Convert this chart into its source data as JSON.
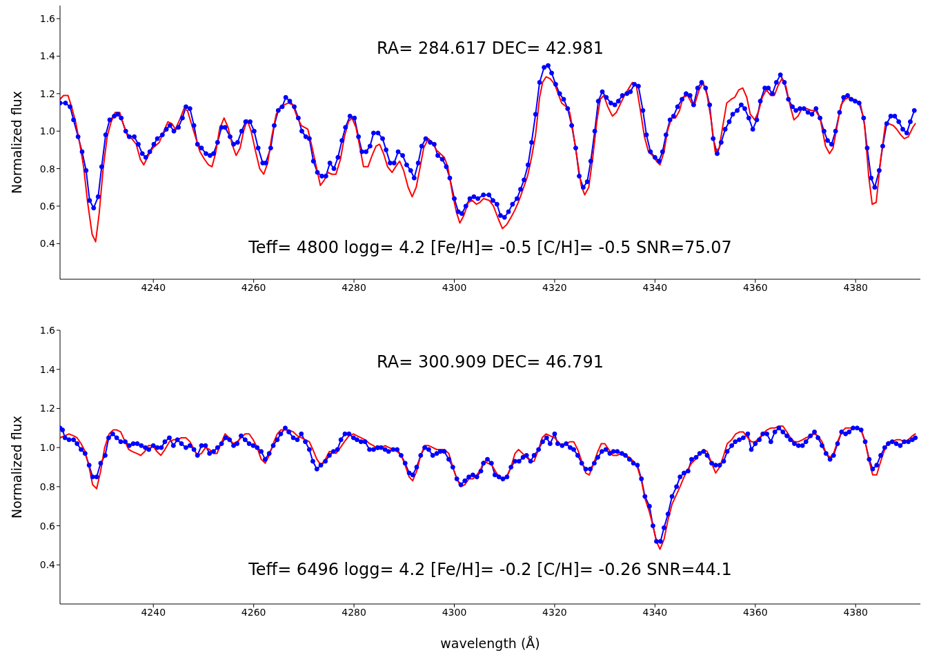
{
  "chart_data": [
    {
      "type": "line",
      "ylabel": "Normalized flux",
      "xlim": [
        4221.4,
        4392.9
      ],
      "xticks": [
        4240,
        4260,
        4280,
        4300,
        4320,
        4340,
        4360,
        4380
      ],
      "ylim": [
        0.21,
        1.67
      ],
      "yticks": [
        0.4,
        0.6,
        0.8,
        {
          "value": 1,
          "label": "1.0"
        },
        1.2,
        1.4,
        1.6
      ],
      "annotations": [
        "RA= 284.617 DEC= 42.981",
        "Teff= 4800 logg= 4.2 [Fe/H]= -0.5 [C/H]= -0.5 SNR=75.07"
      ],
      "series": [
        {
          "color": "#0000ff",
          "marker": "circle",
          "x": [
            4221.4,
            4222.5,
            4223.4,
            4224.1,
            4225.0,
            4225.8,
            4226.6,
            4227.3,
            4228.1,
            4229.0,
            4229.7,
            4230.5,
            4231.3,
            4232.2,
            4232.9,
            4233.6,
            4234.5,
            4235.2,
            4236.2,
            4237.0,
            4237.8,
            4238.5,
            4239.3,
            4240.1,
            4240.8,
            4241.8,
            4242.6,
            4243.3,
            4244.1,
            4245.0,
            4245.8,
            4246.5,
            4247.3,
            4248.1,
            4248.8,
            4249.6,
            4250.5,
            4251.3,
            4252.0,
            4252.8,
            4253.6,
            4254.3,
            4255.3,
            4256.0,
            4256.8,
            4257.6,
            4258.4,
            4259.3,
            4260.1,
            4260.9,
            4261.8,
            4262.4,
            4263.4,
            4264.1,
            4264.9,
            4265.7,
            4266.4,
            4267.2,
            4268.1,
            4268.9,
            4269.6,
            4270.4,
            4271.1,
            4271.9,
            4272.7,
            4273.6,
            4274.4,
            4275.2,
            4276.0,
            4276.8,
            4277.6,
            4278.3,
            4279.2,
            4280.1,
            4280.9,
            4281.6,
            4282.4,
            4283.2,
            4283.9,
            4284.8,
            4285.7,
            4286.4,
            4287.2,
            4288.0,
            4288.8,
            4289.7,
            4290.5,
            4291.3,
            4292.0,
            4292.8,
            4293.5,
            4294.3,
            4295.2,
            4296.0,
            4296.7,
            4297.6,
            4298.4,
            4299.1,
            4300.0,
            4300.8,
            4301.5,
            4302.3,
            4303.1,
            4303.9,
            4304.7,
            4305.8,
            4306.9,
            4307.7,
            4308.5,
            4309.2,
            4310.0,
            4310.8,
            4311.6,
            4312.5,
            4313.2,
            4313.9,
            4314.7,
            4315.4,
            4316.2,
            4317.0,
            4317.9,
            4318.7,
            4319.4,
            4320.2,
            4321.0,
            4321.8,
            4322.6,
            4323.4,
            4324.2,
            4324.9,
            4325.7,
            4326.5,
            4327.2,
            4328.0,
            4328.7,
            4329.5,
            4330.3,
            4331.2,
            4332.0,
            4332.7,
            4333.5,
            4334.4,
            4335.1,
            4335.9,
            4336.7,
            4337.6,
            4338.3,
            4339.1,
            4340.0,
            4340.8,
            4341.5,
            4342.2,
            4343.0,
            4343.7,
            4344.5,
            4345.4,
            4346.2,
            4347.0,
            4347.7,
            4348.5,
            4349.3,
            4350.1,
            4350.9,
            4351.6,
            4352.4,
            4353.2,
            4354.0,
            4354.8,
            4355.5,
            4356.4,
            4357.2,
            4357.9,
            4358.7,
            4359.5,
            4360.3,
            4361.0,
            4361.9,
            4362.6,
            4363.4,
            4364.2,
            4365.0,
            4365.8,
            4366.6,
            4367.4,
            4368.1,
            4368.9,
            4369.7,
            4370.5,
            4371.3,
            4372.1,
            4372.9,
            4373.7,
            4374.4,
            4375.2,
            4376.0,
            4376.8,
            4377.6,
            4378.4,
            4379.1,
            4379.9,
            4380.7,
            4381.6,
            4382.3,
            4383.1,
            4383.8,
            4384.7,
            4385.4,
            4386.2,
            4387.0,
            4387.8,
            4388.6,
            4389.4,
            4390.2,
            4390.9,
            4391.7
          ],
          "values": [
            1.15,
            1.15,
            1.13,
            1.06,
            0.97,
            0.89,
            0.79,
            0.63,
            0.59,
            0.65,
            0.81,
            0.98,
            1.06,
            1.08,
            1.09,
            1.07,
            1.0,
            0.97,
            0.97,
            0.93,
            0.88,
            0.86,
            0.89,
            0.93,
            0.96,
            0.98,
            1.01,
            1.03,
            1.0,
            1.02,
            1.07,
            1.13,
            1.12,
            1.03,
            0.93,
            0.91,
            0.88,
            0.87,
            0.88,
            0.94,
            1.02,
            1.02,
            0.97,
            0.93,
            0.94,
            1.0,
            1.05,
            1.05,
            1.0,
            0.91,
            0.83,
            0.83,
            0.91,
            1.03,
            1.11,
            1.13,
            1.18,
            1.16,
            1.13,
            1.07,
            1.0,
            0.97,
            0.96,
            0.84,
            0.78,
            0.76,
            0.76,
            0.83,
            0.8,
            0.86,
            0.95,
            1.02,
            1.08,
            1.07,
            0.97,
            0.89,
            0.89,
            0.92,
            0.99,
            0.99,
            0.96,
            0.9,
            0.83,
            0.83,
            0.89,
            0.87,
            0.82,
            0.79,
            0.75,
            0.83,
            0.92,
            0.96,
            0.94,
            0.93,
            0.87,
            0.85,
            0.81,
            0.75,
            0.64,
            0.57,
            0.56,
            0.6,
            0.64,
            0.65,
            0.64,
            0.66,
            0.66,
            0.63,
            0.61,
            0.55,
            0.54,
            0.57,
            0.61,
            0.64,
            0.69,
            0.74,
            0.82,
            0.94,
            1.09,
            1.26,
            1.34,
            1.35,
            1.31,
            1.25,
            1.2,
            1.17,
            1.12,
            1.03,
            0.91,
            0.76,
            0.7,
            0.73,
            0.84,
            1.0,
            1.16,
            1.21,
            1.18,
            1.15,
            1.14,
            1.16,
            1.19,
            1.2,
            1.21,
            1.25,
            1.24,
            1.11,
            0.98,
            0.89,
            0.86,
            0.84,
            0.89,
            0.98,
            1.06,
            1.08,
            1.13,
            1.17,
            1.2,
            1.19,
            1.14,
            1.23,
            1.26,
            1.23,
            1.14,
            0.96,
            0.88,
            0.94,
            1.01,
            1.05,
            1.09,
            1.11,
            1.14,
            1.12,
            1.07,
            1.01,
            1.06,
            1.16,
            1.23,
            1.23,
            1.2,
            1.26,
            1.3,
            1.26,
            1.17,
            1.13,
            1.11,
            1.12,
            1.12,
            1.1,
            1.09,
            1.12,
            1.07,
            1.0,
            0.95,
            0.93,
            1.0,
            1.1,
            1.18,
            1.19,
            1.17,
            1.16,
            1.15,
            1.07,
            0.91,
            0.75,
            0.7,
            0.79,
            0.92,
            1.04,
            1.08,
            1.08,
            1.05,
            1.01,
            0.99,
            1.05,
            1.11
          ]
        },
        {
          "color": "#ff0000",
          "x": [
            4221.4,
            4222.1,
            4223.0,
            4223.7,
            4224.5,
            4225.3,
            4226.1,
            4226.9,
            4227.8,
            4228.5,
            4229.2,
            4230.0,
            4230.8,
            4231.6,
            4232.4,
            4233.3,
            4234.1,
            4234.9,
            4235.7,
            4236.6,
            4237.4,
            4238.1,
            4239.0,
            4239.9,
            4241.2,
            4242.1,
            4242.9,
            4243.7,
            4244.4,
            4245.4,
            4246.1,
            4246.8,
            4247.7,
            4248.5,
            4249.3,
            4250.2,
            4251.0,
            4251.7,
            4252.4,
            4253.2,
            4254.1,
            4254.9,
            4255.7,
            4256.5,
            4257.3,
            4258.0,
            4258.7,
            4259.5,
            4260.4,
            4261.2,
            4262.0,
            4262.8,
            4263.6,
            4264.5,
            4265.3,
            4266.1,
            4266.9,
            4267.8,
            4268.6,
            4269.5,
            4270.8,
            4271.6,
            4272.5,
            4273.3,
            4274.1,
            4274.8,
            4275.6,
            4276.4,
            4277.3,
            4278.1,
            4278.9,
            4279.6,
            4280.4,
            4281.2,
            4281.9,
            4282.8,
            4283.6,
            4284.4,
            4285.1,
            4285.9,
            4286.7,
            4287.6,
            4288.3,
            4289.1,
            4289.9,
            4290.8,
            4291.6,
            4292.4,
            4293.2,
            4293.9,
            4294.8,
            4295.6,
            4296.4,
            4297.2,
            4298.0,
            4298.7,
            4299.6,
            4300.4,
            4301.1,
            4301.9,
            4302.8,
            4303.6,
            4304.4,
            4305.1,
            4305.8,
            4307.0,
            4307.8,
            4308.8,
            4309.6,
            4310.4,
            4311.3,
            4312.1,
            4312.9,
            4313.7,
            4314.6,
            4315.4,
            4316.2,
            4317.0,
            4317.6,
            4318.3,
            4319.1,
            4320.0,
            4320.7,
            4321.4,
            4322.3,
            4323.0,
            4323.6,
            4324.5,
            4325.3,
            4326.0,
            4326.8,
            4327.6,
            4328.4,
            4329.1,
            4329.8,
            4330.6,
            4331.5,
            4332.3,
            4333.2,
            4333.9,
            4334.6,
            4335.5,
            4336.3,
            4337.1,
            4337.9,
            4338.7,
            4339.5,
            4340.3,
            4341.0,
            4341.8,
            4342.5,
            4343.3,
            4344.1,
            4344.9,
            4345.6,
            4346.5,
            4347.3,
            4348.0,
            4348.8,
            4349.6,
            4350.4,
            4351.2,
            4352.0,
            4352.8,
            4353.6,
            4354.3,
            4355.2,
            4355.9,
            4356.7,
            4357.5,
            4358.3,
            4359.0,
            4359.9,
            4360.7,
            4361.4,
            4362.2,
            4363.1,
            4363.8,
            4364.5,
            4365.3,
            4366.1,
            4366.9,
            4367.7,
            4368.5,
            4369.3,
            4370.2,
            4371.2,
            4372.0,
            4372.9,
            4374.0,
            4374.8,
            4375.5,
            4376.4,
            4377.1,
            4377.9,
            4378.7,
            4379.5,
            4380.3,
            4381.0,
            4381.8,
            4382.6,
            4383.3,
            4384.1,
            4385.0,
            4385.9,
            4386.6,
            4387.5,
            4388.2,
            4389.0,
            4389.7,
            4390.5,
            4391.4,
            4391.9
          ],
          "values": [
            1.17,
            1.19,
            1.19,
            1.13,
            1.05,
            0.94,
            0.81,
            0.62,
            0.45,
            0.41,
            0.56,
            0.8,
            0.97,
            1.05,
            1.1,
            1.1,
            1.03,
            0.97,
            0.96,
            0.93,
            0.85,
            0.82,
            0.87,
            0.91,
            0.94,
            1.0,
            1.05,
            1.04,
            1.01,
            1.07,
            1.12,
            1.11,
            1.03,
            0.96,
            0.89,
            0.85,
            0.82,
            0.81,
            0.88,
            1.01,
            1.07,
            1.02,
            0.93,
            0.87,
            0.91,
            1.0,
            1.06,
            1.0,
            0.89,
            0.8,
            0.77,
            0.83,
            0.97,
            1.09,
            1.13,
            1.14,
            1.15,
            1.14,
            1.08,
            1.03,
            1.01,
            0.92,
            0.81,
            0.71,
            0.74,
            0.78,
            0.77,
            0.77,
            0.85,
            0.97,
            1.05,
            1.07,
            1.02,
            0.91,
            0.81,
            0.81,
            0.87,
            0.92,
            0.93,
            0.88,
            0.81,
            0.78,
            0.81,
            0.84,
            0.79,
            0.7,
            0.65,
            0.7,
            0.81,
            0.91,
            0.96,
            0.94,
            0.9,
            0.88,
            0.86,
            0.81,
            0.67,
            0.57,
            0.51,
            0.55,
            0.62,
            0.63,
            0.61,
            0.62,
            0.64,
            0.63,
            0.6,
            0.53,
            0.48,
            0.5,
            0.54,
            0.58,
            0.63,
            0.69,
            0.76,
            0.86,
            0.98,
            1.18,
            1.26,
            1.29,
            1.28,
            1.25,
            1.2,
            1.15,
            1.13,
            1.1,
            1.01,
            0.85,
            0.71,
            0.66,
            0.7,
            0.86,
            1.05,
            1.17,
            1.19,
            1.13,
            1.08,
            1.1,
            1.15,
            1.19,
            1.22,
            1.26,
            1.24,
            1.11,
            0.97,
            0.89,
            0.87,
            0.84,
            0.82,
            0.89,
            1.0,
            1.07,
            1.07,
            1.11,
            1.18,
            1.19,
            1.15,
            1.15,
            1.22,
            1.26,
            1.19,
            1.06,
            0.89,
            0.91,
            1.04,
            1.15,
            1.17,
            1.18,
            1.22,
            1.23,
            1.18,
            1.09,
            1.06,
            1.11,
            1.18,
            1.22,
            1.19,
            1.19,
            1.24,
            1.28,
            1.24,
            1.14,
            1.06,
            1.08,
            1.12,
            1.12,
            1.11,
            1.11,
            1.07,
            0.92,
            0.88,
            0.91,
            1.04,
            1.14,
            1.17,
            1.18,
            1.17,
            1.16,
            1.14,
            1.03,
            0.76,
            0.61,
            0.62,
            0.85,
            1.03,
            1.04,
            1.03,
            1.01,
            0.98,
            0.96,
            0.97,
            1.02,
            1.04
          ]
        }
      ]
    },
    {
      "type": "line",
      "ylabel": "Normalized flux",
      "xlabel": "wavelength (Å)",
      "xlim": [
        4221.4,
        4392.9
      ],
      "xticks": [
        4240,
        4260,
        4280,
        4300,
        4320,
        4340,
        4360,
        4380
      ],
      "ylim": [
        0.2,
        1.6
      ],
      "yticks": [
        0.4,
        0.6,
        0.8,
        {
          "value": 1,
          "label": "1.0"
        },
        1.2,
        1.4,
        1.6
      ],
      "annotations": [
        "RA= 300.909 DEC= 46.791",
        "Teff= 6496 logg= 4.2 [Fe/H]= -0.2 [C/H]= -0.26 SNR=44.1"
      ],
      "series": [
        {
          "color": "#0000ff",
          "marker": "circle",
          "x": [
            4221.4,
            4221.9,
            4222.4,
            4223.2,
            4224.1,
            4224.8,
            4225.6,
            4226.4,
            4227.2,
            4227.9,
            4228.7,
            4229.5,
            4230.4,
            4231.1,
            4231.9,
            4232.7,
            4233.5,
            4234.4,
            4235.2,
            4236.0,
            4236.8,
            4237.6,
            4238.4,
            4239.1,
            4240.0,
            4240.8,
            4241.6,
            4242.3,
            4243.2,
            4244.0,
            4244.8,
            4245.6,
            4246.5,
            4247.3,
            4248.1,
            4248.8,
            4249.6,
            4250.4,
            4251.2,
            4252.0,
            4252.8,
            4253.6,
            4254.4,
            4255.2,
            4256.0,
            4256.7,
            4257.5,
            4258.3,
            4259.1,
            4259.9,
            4260.7,
            4261.5,
            4262.3,
            4263.1,
            4263.9,
            4264.7,
            4265.4,
            4266.3,
            4267.0,
            4267.9,
            4268.7,
            4269.5,
            4270.3,
            4271.1,
            4271.8,
            4272.6,
            4273.4,
            4274.3,
            4275.1,
            4275.9,
            4276.7,
            4277.4,
            4278.2,
            4279.0,
            4279.9,
            4280.6,
            4281.4,
            4282.2,
            4283.1,
            4283.9,
            4284.7,
            4285.4,
            4286.2,
            4286.9,
            4287.8,
            4288.6,
            4289.4,
            4290.2,
            4291.0,
            4291.7,
            4292.5,
            4293.3,
            4294.1,
            4294.9,
            4295.7,
            4296.5,
            4297.2,
            4298.0,
            4298.9,
            4299.7,
            4300.5,
            4301.3,
            4302.1,
            4302.9,
            4303.7,
            4304.5,
            4305.3,
            4305.8,
            4306.6,
            4307.4,
            4308.1,
            4308.9,
            4309.7,
            4310.5,
            4311.3,
            4312.1,
            4312.9,
            4313.7,
            4314.4,
            4315.2,
            4315.9,
            4316.8,
            4317.6,
            4318.4,
            4319.1,
            4320.0,
            4320.6,
            4321.5,
            4322.3,
            4323.1,
            4323.8,
            4324.6,
            4325.4,
            4326.2,
            4327.1,
            4327.9,
            4328.6,
            4329.4,
            4330.2,
            4331.0,
            4331.7,
            4332.5,
            4333.4,
            4334.1,
            4334.9,
            4335.7,
            4336.5,
            4337.3,
            4338.0,
            4338.9,
            4339.6,
            4340.3,
            4341.1,
            4341.8,
            4342.6,
            4343.4,
            4344.3,
            4345.0,
            4345.8,
            4346.6,
            4347.3,
            4348.2,
            4348.9,
            4349.7,
            4350.4,
            4351.3,
            4352.1,
            4352.9,
            4353.7,
            4354.4,
            4355.3,
            4356.0,
            4356.8,
            4357.6,
            4358.5,
            4359.2,
            4360.0,
            4360.8,
            4361.5,
            4362.3,
            4363.1,
            4363.9,
            4364.7,
            4365.5,
            4366.3,
            4367.0,
            4367.8,
            4368.6,
            4369.4,
            4370.1,
            4371.0,
            4371.8,
            4372.5,
            4373.3,
            4374.1,
            4374.9,
            4375.6,
            4376.4,
            4377.2,
            4378.0,
            4378.7,
            4379.5,
            4380.3,
            4381.1,
            4381.9,
            4382.7,
            4383.4,
            4384.2,
            4385.0,
            4385.8,
            4386.5,
            4387.3,
            4388.1,
            4388.9,
            4389.7,
            4390.5,
            4391.3,
            4391.9
          ],
          "values": [
            1.1,
            1.09,
            1.05,
            1.04,
            1.04,
            1.02,
            0.99,
            0.97,
            0.91,
            0.85,
            0.85,
            0.92,
            0.96,
            1.05,
            1.07,
            1.05,
            1.03,
            1.03,
            1.01,
            1.02,
            1.02,
            1.01,
            1.0,
            0.99,
            1.01,
            1.0,
            1.0,
            1.03,
            1.05,
            1.01,
            1.04,
            1.02,
            1.0,
            1.01,
            0.99,
            0.96,
            1.01,
            1.01,
            0.97,
            0.98,
            1.0,
            1.02,
            1.05,
            1.04,
            1.01,
            1.02,
            1.06,
            1.04,
            1.02,
            1.01,
            1.0,
            0.98,
            0.94,
            0.97,
            1.01,
            1.04,
            1.07,
            1.1,
            1.08,
            1.05,
            1.04,
            1.07,
            1.03,
            0.99,
            0.93,
            0.89,
            0.91,
            0.93,
            0.96,
            0.98,
            0.99,
            1.04,
            1.07,
            1.07,
            1.05,
            1.04,
            1.03,
            1.03,
            0.99,
            0.99,
            1.0,
            1.0,
            0.99,
            0.98,
            0.99,
            0.99,
            0.96,
            0.92,
            0.87,
            0.86,
            0.9,
            0.96,
            1.0,
            0.99,
            0.96,
            0.97,
            0.98,
            0.98,
            0.94,
            0.9,
            0.84,
            0.81,
            0.83,
            0.85,
            0.86,
            0.85,
            0.88,
            0.92,
            0.94,
            0.92,
            0.86,
            0.85,
            0.84,
            0.85,
            0.9,
            0.93,
            0.93,
            0.95,
            0.96,
            0.93,
            0.96,
            0.99,
            1.03,
            1.05,
            1.02,
            1.07,
            1.02,
            1.01,
            1.02,
            1.0,
            0.99,
            0.96,
            0.92,
            0.89,
            0.89,
            0.92,
            0.95,
            0.98,
            0.99,
            0.97,
            0.98,
            0.98,
            0.97,
            0.96,
            0.94,
            0.92,
            0.91,
            0.84,
            0.75,
            0.7,
            0.6,
            0.52,
            0.52,
            0.59,
            0.66,
            0.75,
            0.8,
            0.85,
            0.87,
            0.88,
            0.94,
            0.95,
            0.97,
            0.98,
            0.96,
            0.92,
            0.91,
            0.91,
            0.93,
            0.98,
            1.01,
            1.03,
            1.04,
            1.05,
            1.07,
            0.99,
            1.02,
            1.04,
            1.07,
            1.07,
            1.03,
            1.08,
            1.1,
            1.08,
            1.06,
            1.04,
            1.02,
            1.01,
            1.01,
            1.03,
            1.06,
            1.08,
            1.05,
            1.01,
            0.97,
            0.94,
            0.96,
            1.02,
            1.08,
            1.07,
            1.08,
            1.1,
            1.1,
            1.09,
            1.03,
            0.94,
            0.89,
            0.91,
            0.96,
            1.0,
            1.02,
            1.03,
            1.02,
            1.01,
            1.03,
            1.03,
            1.04,
            1.05
          ]
        },
        {
          "color": "#ff0000",
          "x": [
            4221.4,
            4222.3,
            4223.2,
            4224.1,
            4224.8,
            4225.6,
            4226.4,
            4227.2,
            4227.9,
            4228.7,
            4229.5,
            4230.3,
            4231.2,
            4232.0,
            4232.7,
            4233.5,
            4234.2,
            4235.1,
            4235.8,
            4236.7,
            4237.5,
            4238.3,
            4239.0,
            4239.9,
            4240.7,
            4241.5,
            4242.3,
            4243.2,
            4244.0,
            4244.8,
            4245.6,
            4246.5,
            4247.3,
            4248.1,
            4248.8,
            4249.6,
            4250.4,
            4251.2,
            4252.0,
            4252.7,
            4253.5,
            4254.3,
            4255.1,
            4255.9,
            4256.7,
            4257.5,
            4258.3,
            4259.1,
            4259.9,
            4260.7,
            4261.5,
            4262.3,
            4263.1,
            4263.9,
            4264.7,
            4265.4,
            4266.3,
            4267.0,
            4267.9,
            4268.7,
            4269.5,
            4270.3,
            4271.1,
            4271.8,
            4272.6,
            4273.4,
            4274.3,
            4275.1,
            4276.4,
            4277.3,
            4278.1,
            4279.0,
            4279.9,
            4280.6,
            4281.4,
            4282.2,
            4283.1,
            4283.9,
            4284.7,
            4285.5,
            4286.2,
            4287.0,
            4287.8,
            4288.6,
            4289.4,
            4290.2,
            4291.0,
            4291.7,
            4292.5,
            4293.3,
            4294.1,
            4294.9,
            4295.7,
            4296.5,
            4297.2,
            4298.0,
            4298.9,
            4299.7,
            4300.5,
            4301.3,
            4302.1,
            4302.9,
            4303.7,
            4304.5,
            4305.3,
            4305.8,
            4306.7,
            4307.5,
            4308.4,
            4309.6,
            4310.4,
            4311.3,
            4312.1,
            4312.8,
            4313.6,
            4314.4,
            4315.2,
            4315.9,
            4316.8,
            4317.5,
            4318.3,
            4319.1,
            4320.0,
            4320.7,
            4321.4,
            4322.3,
            4323.1,
            4323.8,
            4324.6,
            4325.4,
            4326.2,
            4326.9,
            4327.8,
            4328.6,
            4329.3,
            4330.0,
            4330.8,
            4331.6,
            4332.4,
            4333.3,
            4334.1,
            4334.9,
            4335.7,
            4336.5,
            4337.3,
            4338.0,
            4338.9,
            4339.6,
            4340.3,
            4341.0,
            4341.8,
            4342.6,
            4343.4,
            4344.3,
            4345.0,
            4345.8,
            4346.6,
            4347.3,
            4348.1,
            4348.9,
            4349.7,
            4350.4,
            4351.3,
            4352.1,
            4352.9,
            4353.7,
            4354.4,
            4355.3,
            4356.1,
            4356.9,
            4357.6,
            4358.5,
            4359.2,
            4360.0,
            4360.8,
            4361.5,
            4362.3,
            4363.1,
            4363.9,
            4364.7,
            4365.5,
            4366.3,
            4367.0,
            4367.8,
            4368.6,
            4369.4,
            4370.1,
            4371.0,
            4371.8,
            4372.5,
            4373.3,
            4374.1,
            4374.9,
            4375.6,
            4376.4,
            4377.2,
            4378.0,
            4378.7,
            4379.5,
            4380.3,
            4381.1,
            4381.9,
            4382.7,
            4383.4,
            4384.2,
            4385.0,
            4385.8,
            4386.5,
            4387.3,
            4388.1,
            4388.9,
            4389.7,
            4390.5,
            4391.3,
            4391.9
          ],
          "values": [
            1.05,
            1.06,
            1.07,
            1.06,
            1.05,
            1.02,
            0.98,
            0.9,
            0.81,
            0.79,
            0.88,
            1.0,
            1.07,
            1.09,
            1.09,
            1.08,
            1.04,
            0.99,
            0.98,
            0.97,
            0.96,
            0.98,
            1.01,
            1.01,
            0.98,
            0.96,
            0.99,
            1.03,
            1.04,
            1.04,
            1.05,
            1.05,
            1.03,
            0.99,
            0.96,
            0.97,
            1.0,
            0.99,
            0.97,
            0.97,
            1.02,
            1.07,
            1.05,
            1.02,
            1.03,
            1.05,
            1.07,
            1.07,
            1.04,
            1.0,
            0.94,
            0.92,
            0.96,
            1.02,
            1.07,
            1.09,
            1.09,
            1.09,
            1.08,
            1.06,
            1.05,
            1.04,
            1.03,
            0.99,
            0.94,
            0.91,
            0.94,
            0.98,
            0.97,
            1.0,
            1.03,
            1.06,
            1.07,
            1.06,
            1.05,
            1.04,
            1.02,
            1.01,
            0.99,
            1.0,
            1.01,
            1.0,
            0.99,
            0.98,
            0.96,
            0.91,
            0.85,
            0.83,
            0.88,
            0.96,
            1.01,
            1.01,
            1.0,
            0.99,
            0.99,
            0.99,
            0.97,
            0.9,
            0.84,
            0.8,
            0.81,
            0.84,
            0.84,
            0.86,
            0.89,
            0.93,
            0.92,
            0.91,
            0.87,
            0.83,
            0.85,
            0.9,
            0.97,
            0.99,
            0.97,
            0.95,
            0.93,
            0.93,
            0.99,
            1.05,
            1.07,
            1.06,
            1.05,
            1.03,
            1.01,
            1.02,
            1.03,
            1.03,
            0.99,
            0.93,
            0.87,
            0.86,
            0.92,
            0.98,
            1.02,
            1.02,
            0.99,
            0.96,
            0.96,
            0.97,
            0.96,
            0.95,
            0.93,
            0.9,
            0.83,
            0.74,
            0.67,
            0.6,
            0.52,
            0.48,
            0.53,
            0.63,
            0.71,
            0.76,
            0.8,
            0.85,
            0.89,
            0.92,
            0.94,
            0.97,
            0.99,
            0.98,
            0.92,
            0.87,
            0.9,
            0.96,
            1.02,
            1.04,
            1.07,
            1.08,
            1.08,
            1.05,
            1.03,
            1.03,
            1.05,
            1.07,
            1.09,
            1.1,
            1.1,
            1.11,
            1.11,
            1.08,
            1.05,
            1.03,
            1.03,
            1.04,
            1.05,
            1.06,
            1.07,
            1.06,
            1.03,
            0.97,
            0.95,
            0.97,
            1.03,
            1.08,
            1.1,
            1.1,
            1.1,
            1.1,
            1.09,
            1.03,
            0.93,
            0.86,
            0.86,
            0.93,
            0.99,
            1.03,
            1.03,
            1.04,
            1.04,
            1.03,
            1.04,
            1.06,
            1.07
          ]
        }
      ]
    }
  ]
}
